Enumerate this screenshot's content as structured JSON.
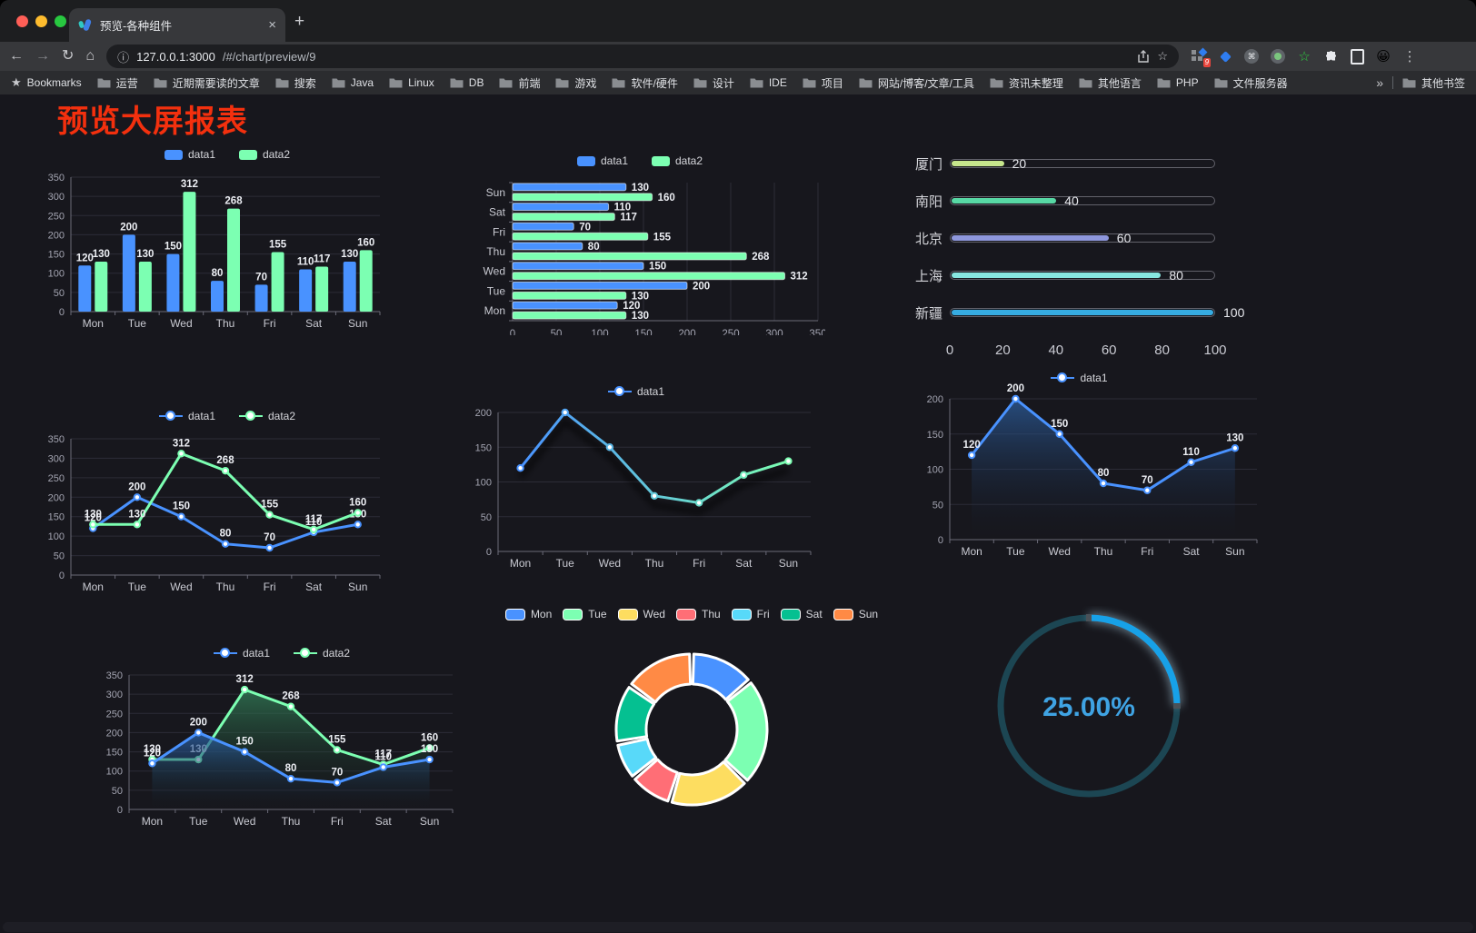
{
  "browser": {
    "tab": {
      "title": "预览-各种组件",
      "close_glyph": "×"
    },
    "new_tab_glyph": "+",
    "nav": {
      "back": "←",
      "forward": "→",
      "reload": "↻",
      "home": "⌂"
    },
    "url": {
      "info_glyph": "ⓘ",
      "host": "127.0.0.1:3000",
      "path": "/#/chart/preview/9"
    },
    "actions": {
      "bookmark_star": "☆",
      "extensions_badge": "9",
      "cmd_glyph": "⌘",
      "green_star": "☆",
      "avatar_emoji": "😀",
      "menu_glyph": "⋮"
    },
    "bookmarks": {
      "label": "Bookmarks",
      "folders": [
        "运营",
        "近期需要读的文章",
        "搜索",
        "Java",
        "Linux",
        "DB",
        "前端",
        "游戏",
        "软件/硬件",
        "设计",
        "IDE",
        "项目",
        "网站/博客/文章/工具",
        "资讯未整理",
        "其他语言",
        "PHP",
        "文件服务器"
      ],
      "overflow": "»",
      "other": "其他书签"
    }
  },
  "page": {
    "title": "预览大屏报表",
    "title_color": "#f3300e",
    "background": "#17171d"
  },
  "chart_data": [
    {
      "id": "grouped-bar",
      "type": "bar",
      "categories": [
        "Mon",
        "Tue",
        "Wed",
        "Thu",
        "Fri",
        "Sat",
        "Sun"
      ],
      "series": [
        {
          "name": "data1",
          "color": "#4992ff",
          "values": [
            120,
            200,
            150,
            80,
            70,
            110,
            130
          ]
        },
        {
          "name": "data2",
          "color": "#7cffb2",
          "values": [
            130,
            130,
            312,
            268,
            155,
            117,
            160
          ]
        }
      ],
      "ylim": [
        0,
        350
      ],
      "yticks": [
        0,
        50,
        100,
        150,
        200,
        250,
        300,
        350
      ],
      "grid": true,
      "legend_position": "top",
      "value_labels": true
    },
    {
      "id": "horizontal-bar",
      "type": "bar-horizontal",
      "categories": [
        "Mon",
        "Tue",
        "Wed",
        "Thu",
        "Fri",
        "Sat",
        "Sun"
      ],
      "categories_order": "Mon at bottom, Sun at top",
      "series": [
        {
          "name": "data1",
          "color": "#4992ff",
          "values": [
            120,
            200,
            150,
            80,
            70,
            110,
            130
          ]
        },
        {
          "name": "data2",
          "color": "#7cffb2",
          "values": [
            130,
            130,
            312,
            268,
            155,
            117,
            160
          ]
        }
      ],
      "xlim": [
        0,
        350
      ],
      "xticks": [
        0,
        50,
        100,
        150,
        200,
        250,
        300,
        350
      ],
      "grid": true,
      "legend_position": "top",
      "value_labels": true
    },
    {
      "id": "city-progress",
      "type": "progress-bars",
      "items": [
        {
          "label": "厦门",
          "value": 20,
          "color": "#c6e68c"
        },
        {
          "label": "南阳",
          "value": 40,
          "color": "#57d8a4"
        },
        {
          "label": "北京",
          "value": 60,
          "color": "#8e97dc"
        },
        {
          "label": "上海",
          "value": 80,
          "color": "#87e6e0"
        },
        {
          "label": "新疆",
          "value": 100,
          "color": "#36ace2"
        }
      ],
      "xlim": [
        0,
        100
      ],
      "xticks": [
        0,
        20,
        40,
        60,
        80,
        100
      ]
    },
    {
      "id": "two-line",
      "type": "line",
      "categories": [
        "Mon",
        "Tue",
        "Wed",
        "Thu",
        "Fri",
        "Sat",
        "Sun"
      ],
      "series": [
        {
          "name": "data1",
          "color": "#4992ff",
          "values": [
            120,
            200,
            150,
            80,
            70,
            110,
            130
          ]
        },
        {
          "name": "data2",
          "color": "#7cffb2",
          "values": [
            130,
            130,
            312,
            268,
            155,
            117,
            160
          ]
        }
      ],
      "ylim": [
        0,
        350
      ],
      "yticks": [
        0,
        50,
        100,
        150,
        200,
        250,
        300,
        350
      ],
      "grid": true,
      "legend_position": "top",
      "value_labels": true
    },
    {
      "id": "gradient-line",
      "type": "line",
      "categories": [
        "Mon",
        "Tue",
        "Wed",
        "Thu",
        "Fri",
        "Sat",
        "Sun"
      ],
      "series": [
        {
          "name": "data1",
          "color_gradient": [
            "#4992ff",
            "#7cffb2"
          ],
          "values": [
            120,
            200,
            150,
            80,
            70,
            110,
            130
          ]
        }
      ],
      "ylim": [
        0,
        200
      ],
      "yticks": [
        0,
        50,
        100,
        150,
        200
      ],
      "grid": true,
      "legend_position": "top",
      "value_labels": false,
      "shadow": true
    },
    {
      "id": "area-line",
      "type": "area",
      "categories": [
        "Mon",
        "Tue",
        "Wed",
        "Thu",
        "Fri",
        "Sat",
        "Sun"
      ],
      "series": [
        {
          "name": "data1",
          "color": "#4992ff",
          "area_from": "rgba(45,95,160,0.75)",
          "area_to": "rgba(20,26,40,0)",
          "values": [
            120,
            200,
            150,
            80,
            70,
            110,
            130
          ]
        }
      ],
      "ylim": [
        0,
        200
      ],
      "yticks": [
        0,
        50,
        100,
        150,
        200
      ],
      "grid": true,
      "legend_position": "top",
      "value_labels": true
    },
    {
      "id": "two-area",
      "type": "area",
      "categories": [
        "Mon",
        "Tue",
        "Wed",
        "Thu",
        "Fri",
        "Sat",
        "Sun"
      ],
      "series": [
        {
          "name": "data2",
          "color": "#7cffb2",
          "area_from": "rgba(52,130,90,0.75)",
          "area_to": "rgba(20,30,26,0)",
          "values": [
            130,
            130,
            312,
            268,
            155,
            117,
            160
          ]
        },
        {
          "name": "data1",
          "color": "#4992ff",
          "area_from": "rgba(43,98,165,0.8)",
          "area_to": "rgba(18,24,38,0)",
          "values": [
            120,
            200,
            150,
            80,
            70,
            110,
            130
          ]
        }
      ],
      "legend_order": [
        "data1",
        "data2"
      ],
      "ylim": [
        0,
        350
      ],
      "yticks": [
        0,
        50,
        100,
        150,
        200,
        250,
        300,
        350
      ],
      "grid": true,
      "legend_position": "top",
      "value_labels": true
    },
    {
      "id": "donut",
      "type": "pie",
      "items": [
        {
          "label": "Mon",
          "value": 120,
          "color": "#4992ff"
        },
        {
          "label": "Tue",
          "value": 200,
          "color": "#7cffb2"
        },
        {
          "label": "Wed",
          "value": 150,
          "color": "#fddd60"
        },
        {
          "label": "Thu",
          "value": 80,
          "color": "#ff6e76"
        },
        {
          "label": "Fri",
          "value": 70,
          "color": "#58d9f9"
        },
        {
          "label": "Sat",
          "value": 110,
          "color": "#05c091"
        },
        {
          "label": "Sun",
          "value": 130,
          "color": "#ff8a45"
        }
      ],
      "donut": true,
      "border_color": "#ffffff",
      "legend_position": "top"
    },
    {
      "id": "gauge",
      "type": "gauge",
      "value": 25,
      "max": 100,
      "label": "25.00%",
      "progress_color": "#17a1e8",
      "track_color": "#1c4653",
      "text_color": "#3fa3e3"
    }
  ]
}
